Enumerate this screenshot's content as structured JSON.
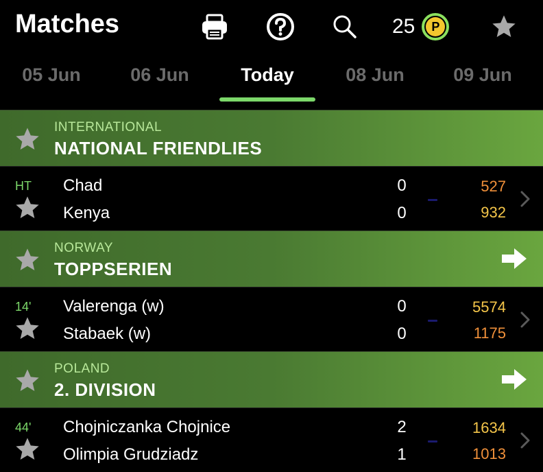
{
  "header": {
    "title": "Matches",
    "points": "25",
    "points_badge": "P",
    "icons": [
      "printer-icon",
      "help-icon",
      "search-icon",
      "star-icon"
    ]
  },
  "tabs": [
    {
      "label": "05 Jun",
      "active": false
    },
    {
      "label": "06 Jun",
      "active": false
    },
    {
      "label": "Today",
      "active": true
    },
    {
      "label": "08 Jun",
      "active": false
    },
    {
      "label": "09 Jun",
      "active": false
    }
  ],
  "sections": [
    {
      "country": "INTERNATIONAL",
      "league": "NATIONAL FRIENDLIES",
      "has_arrow": false,
      "match": {
        "status": "HT",
        "home": "Chad",
        "away": "Kenya",
        "home_score": "0",
        "away_score": "0",
        "home_odd": "527",
        "away_odd": "932"
      }
    },
    {
      "country": "NORWAY",
      "league": "TOPPSERIEN",
      "has_arrow": true,
      "match": {
        "status": "14'",
        "home": "Valerenga (w)",
        "away": "Stabaek (w)",
        "home_score": "0",
        "away_score": "0",
        "home_odd": "5574",
        "away_odd": "1175"
      }
    },
    {
      "country": "POLAND",
      "league": "2. DIVISION",
      "has_arrow": true,
      "match": {
        "status": "44'",
        "home": "Chojniczanka Chojnice",
        "away": "Olimpia Grudziadz",
        "home_score": "2",
        "away_score": "1",
        "home_odd": "1634",
        "away_odd": "1013"
      }
    }
  ],
  "colors": {
    "accent_green": "#7cd86a",
    "odd_orange": "#f0903a",
    "odd_yellow": "#f5c64a",
    "inactive_tab": "#6b6b6b"
  }
}
